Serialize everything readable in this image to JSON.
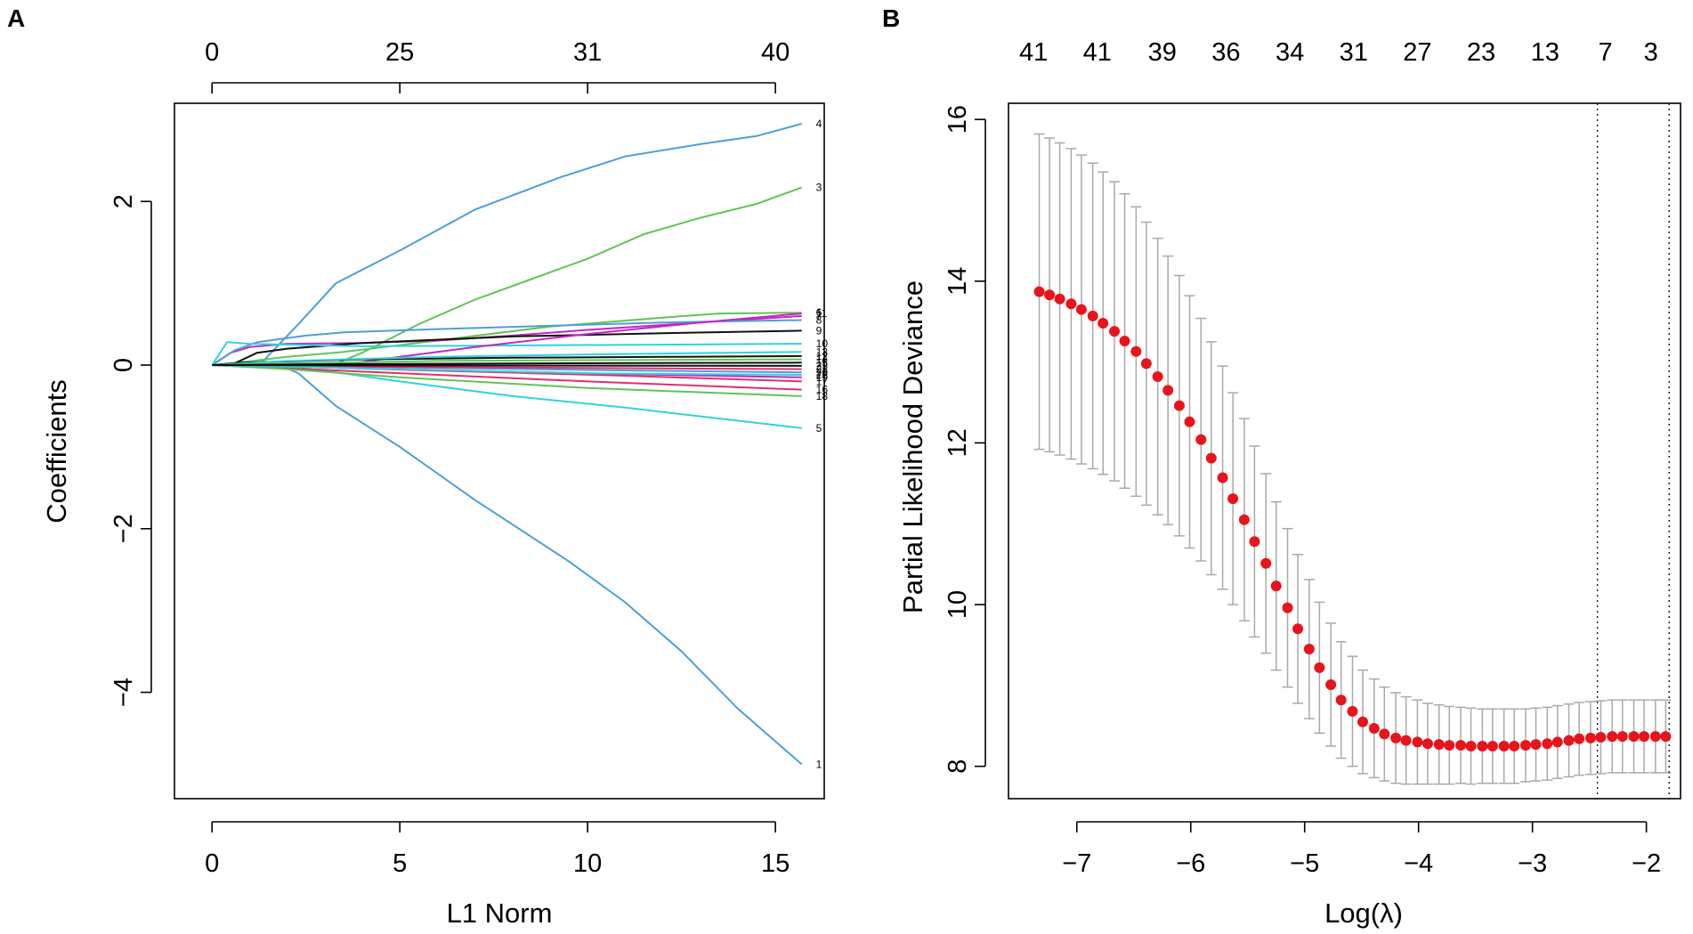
{
  "chart_data": [
    {
      "panel_label": "A",
      "type": "line",
      "title": "",
      "xlabel": "L1 Norm",
      "ylabel": "Coefficients",
      "xlim": [
        -1,
        16.3
      ],
      "ylim": [
        -5.3,
        3.2
      ],
      "x_ticks": [
        0,
        5,
        10,
        15
      ],
      "y_ticks": [
        -4,
        -2,
        0,
        2
      ],
      "top_axis": {
        "positions": [
          0,
          5,
          10,
          15
        ],
        "labels": [
          "0",
          "25",
          "31",
          "40"
        ]
      },
      "grid": false,
      "series": [
        {
          "name": "4",
          "color": "#4C9FD8",
          "end_label": "4",
          "x": [
            0,
            1.3,
            2.3,
            3.3,
            5,
            7,
            9.3,
            11,
            13,
            14.5,
            15.7
          ],
          "y": [
            0,
            0.02,
            0.5,
            1.0,
            1.4,
            1.9,
            2.3,
            2.55,
            2.7,
            2.8,
            2.95
          ]
        },
        {
          "name": "3",
          "color": "#61C454",
          "end_label": "3",
          "x": [
            0,
            3.2,
            4,
            5.5,
            7,
            8.5,
            10,
            11.5,
            13,
            14.5,
            15.7
          ],
          "y": [
            0,
            0,
            0.15,
            0.5,
            0.8,
            1.05,
            1.3,
            1.6,
            1.8,
            1.97,
            2.17
          ]
        },
        {
          "name": "1",
          "color": "#4C9FD8",
          "end_label": "1",
          "x": [
            0,
            1.8,
            2.3,
            3.3,
            5,
            7,
            9.5,
            11,
            12.5,
            14,
            15.7
          ],
          "y": [
            0,
            0,
            -0.1,
            -0.5,
            -1.0,
            -1.65,
            -2.4,
            -2.9,
            -3.5,
            -4.2,
            -4.88
          ]
        },
        {
          "name": "5",
          "color": "#2FD3DE",
          "end_label": "5",
          "x": [
            0,
            2,
            3,
            5,
            8,
            11,
            14,
            15.7
          ],
          "y": [
            0,
            -0.02,
            -0.07,
            -0.2,
            -0.38,
            -0.52,
            -0.68,
            -0.77
          ]
        },
        {
          "name": "6",
          "color": "#61C454",
          "end_label": "6",
          "x": [
            0,
            0.9,
            2,
            3.5,
            6,
            9,
            12,
            13.5,
            15.7
          ],
          "y": [
            0,
            0.04,
            0.1,
            0.16,
            0.3,
            0.47,
            0.58,
            0.63,
            0.64
          ]
        },
        {
          "name": "7",
          "color": "#C625C6",
          "end_label": "7",
          "x": [
            0,
            0.5,
            1,
            2,
            4,
            6,
            8,
            10,
            12,
            14,
            15.7
          ],
          "y": [
            0,
            0.15,
            0.22,
            0.26,
            0.27,
            0.3,
            0.36,
            0.43,
            0.49,
            0.55,
            0.6
          ]
        },
        {
          "name": "8",
          "color": "#4C9FD8",
          "end_label": "8",
          "x": [
            0,
            0.6,
            1.2,
            2.5,
            3.5,
            6,
            9,
            12,
            15.7
          ],
          "y": [
            0,
            0.18,
            0.28,
            0.36,
            0.4,
            0.44,
            0.48,
            0.52,
            0.55
          ]
        },
        {
          "name": "9",
          "color": "#111111",
          "end_label": "9",
          "x": [
            0,
            0.6,
            1.2,
            2,
            4,
            8,
            12,
            15.7
          ],
          "y": [
            0,
            0.02,
            0.15,
            0.2,
            0.27,
            0.35,
            0.39,
            0.42
          ]
        },
        {
          "name": "10",
          "color": "#2FD3DE",
          "end_label": "10",
          "x": [
            0,
            0.4,
            1.0,
            2,
            4,
            8,
            12,
            15.7
          ],
          "y": [
            0,
            0.28,
            0.26,
            0.25,
            0.23,
            0.24,
            0.25,
            0.26
          ]
        },
        {
          "name": "11",
          "color": "#C625C6",
          "end_label": "11",
          "x": [
            0,
            3.4,
            5,
            7,
            10,
            13,
            15.7
          ],
          "y": [
            0,
            0,
            0.1,
            0.22,
            0.38,
            0.52,
            0.63
          ]
        },
        {
          "name": "12",
          "color": "#111111",
          "end_label": "12",
          "x": [
            0,
            0.8,
            4,
            8,
            12,
            15.7
          ],
          "y": [
            0,
            0.03,
            0.07,
            0.09,
            0.1,
            0.11
          ]
        },
        {
          "name": "13",
          "color": "#2FD3DE",
          "end_label": "13",
          "x": [
            0,
            2,
            6,
            10,
            15.7
          ],
          "y": [
            0,
            0.05,
            0.1,
            0.13,
            0.16
          ]
        },
        {
          "name": "14",
          "color": "#61C454",
          "end_label": "14",
          "x": [
            0,
            2,
            6,
            10,
            15.7
          ],
          "y": [
            0,
            0.02,
            0.05,
            0.06,
            0.07
          ]
        },
        {
          "name": "15",
          "color": "#111111",
          "end_label": "15",
          "x": [
            0,
            3,
            8,
            15.7
          ],
          "y": [
            0,
            0.01,
            0.02,
            0.03
          ]
        },
        {
          "name": "16",
          "color": "#E0306A",
          "end_label": "16",
          "x": [
            0,
            2,
            6,
            10,
            15.7
          ],
          "y": [
            0,
            -0.04,
            -0.12,
            -0.2,
            -0.3
          ]
        },
        {
          "name": "17",
          "color": "#E0306A",
          "end_label": "17",
          "x": [
            0,
            3,
            7,
            11,
            15.7
          ],
          "y": [
            0,
            -0.03,
            -0.08,
            -0.13,
            -0.2
          ]
        },
        {
          "name": "18",
          "color": "#61C454",
          "end_label": "18",
          "x": [
            0,
            2,
            5,
            10,
            15.7
          ],
          "y": [
            0,
            -0.05,
            -0.15,
            -0.28,
            -0.38
          ]
        },
        {
          "name": "19",
          "color": "#C625C6",
          "end_label": "19",
          "x": [
            0,
            3,
            8,
            12,
            15.7
          ],
          "y": [
            0,
            -0.03,
            -0.08,
            -0.12,
            -0.15
          ]
        },
        {
          "name": "20",
          "color": "#4C9FD8",
          "end_label": "20",
          "x": [
            0,
            4,
            10,
            15.7
          ],
          "y": [
            0,
            -0.02,
            -0.06,
            -0.09
          ]
        },
        {
          "name": "21",
          "color": "#E0306A",
          "end_label": "21",
          "x": [
            0,
            3,
            8,
            15.7
          ],
          "y": [
            0,
            -0.02,
            -0.03,
            -0.05
          ]
        },
        {
          "name": "22",
          "color": "#2FD3DE",
          "end_label": "22",
          "x": [
            0,
            4,
            10,
            15.7
          ],
          "y": [
            0,
            -0.04,
            -0.1,
            -0.12
          ]
        },
        {
          "name": "23",
          "color": "#111111",
          "end_label": "23",
          "x": [
            0,
            5,
            15.7
          ],
          "y": [
            0,
            -0.005,
            -0.01
          ]
        }
      ]
    },
    {
      "panel_label": "B",
      "type": "scatter",
      "title": "",
      "xlabel": "Log(λ)",
      "ylabel": "Partial Likelihood Deviance",
      "xlim": [
        -7.6,
        -1.7
      ],
      "ylim": [
        7.6,
        16.2
      ],
      "x_ticks": [
        -7,
        -6,
        -5,
        -4,
        -3,
        -2
      ],
      "x_tick_labels": [
        "−7",
        "−6",
        "−5",
        "−4",
        "−3",
        "−2"
      ],
      "y_ticks": [
        8,
        10,
        12,
        14,
        16
      ],
      "top_axis": {
        "positions": [
          -7.38,
          -6.82,
          -6.25,
          -5.69,
          -5.13,
          -4.57,
          -4.01,
          -3.45,
          -2.89,
          -2.36,
          -1.96
        ],
        "labels": [
          "41",
          "41",
          "39",
          "36",
          "34",
          "31",
          "27",
          "23",
          "13",
          "7",
          "3"
        ]
      },
      "vlines": [
        -2.43,
        -1.8
      ],
      "point_color": "#E8141B",
      "errorbar_color": "#A9A9A9",
      "points": {
        "x": [
          -7.33,
          -7.24,
          -7.15,
          -7.05,
          -6.96,
          -6.86,
          -6.77,
          -6.67,
          -6.58,
          -6.48,
          -6.39,
          -6.29,
          -6.2,
          -6.1,
          -6.01,
          -5.91,
          -5.82,
          -5.72,
          -5.63,
          -5.53,
          -5.44,
          -5.34,
          -5.25,
          -5.15,
          -5.06,
          -4.96,
          -4.87,
          -4.77,
          -4.68,
          -4.58,
          -4.49,
          -4.39,
          -4.3,
          -4.2,
          -4.11,
          -4.01,
          -3.92,
          -3.82,
          -3.73,
          -3.63,
          -3.54,
          -3.44,
          -3.35,
          -3.25,
          -3.16,
          -3.06,
          -2.97,
          -2.87,
          -2.78,
          -2.68,
          -2.59,
          -2.49,
          -2.4,
          -2.3,
          -2.21,
          -2.11,
          -2.02,
          -1.92,
          -1.83
        ],
        "y": [
          13.87,
          13.83,
          13.78,
          13.72,
          13.65,
          13.57,
          13.48,
          13.38,
          13.26,
          13.13,
          12.98,
          12.82,
          12.65,
          12.46,
          12.26,
          12.04,
          11.81,
          11.57,
          11.31,
          11.05,
          10.78,
          10.51,
          10.23,
          9.96,
          9.7,
          9.45,
          9.22,
          9.01,
          8.82,
          8.68,
          8.55,
          8.47,
          8.4,
          8.35,
          8.32,
          8.3,
          8.28,
          8.27,
          8.26,
          8.26,
          8.25,
          8.25,
          8.25,
          8.25,
          8.25,
          8.26,
          8.27,
          8.28,
          8.3,
          8.32,
          8.34,
          8.35,
          8.36,
          8.37,
          8.37,
          8.37,
          8.37,
          8.37,
          8.37
        ],
        "err": [
          1.95,
          1.94,
          1.93,
          1.92,
          1.91,
          1.89,
          1.87,
          1.85,
          1.82,
          1.79,
          1.75,
          1.71,
          1.66,
          1.61,
          1.56,
          1.5,
          1.44,
          1.38,
          1.31,
          1.25,
          1.18,
          1.11,
          1.04,
          0.98,
          0.92,
          0.86,
          0.81,
          0.76,
          0.72,
          0.68,
          0.64,
          0.61,
          0.58,
          0.56,
          0.54,
          0.52,
          0.5,
          0.49,
          0.48,
          0.47,
          0.47,
          0.46,
          0.46,
          0.46,
          0.46,
          0.45,
          0.45,
          0.45,
          0.45,
          0.45,
          0.45,
          0.45,
          0.45,
          0.45,
          0.45,
          0.45,
          0.45,
          0.45,
          0.45
        ]
      }
    }
  ]
}
